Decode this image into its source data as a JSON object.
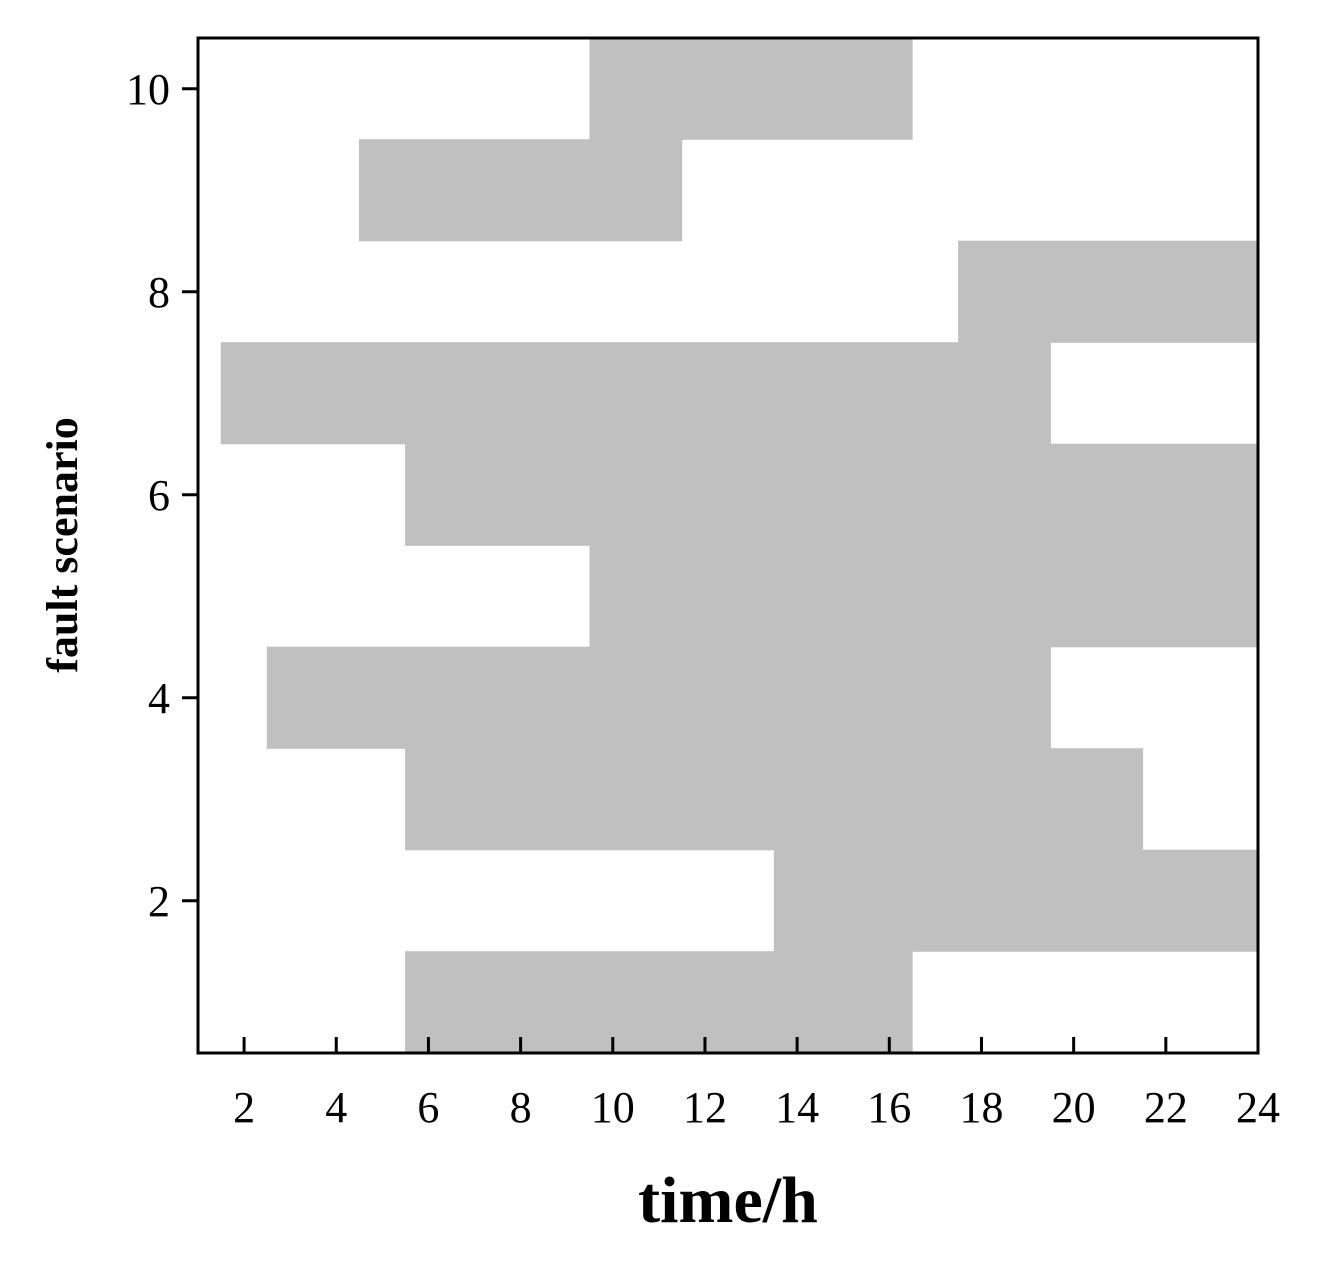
{
  "chart_data": {
    "type": "heatmap",
    "title": "",
    "xlabel": "time/h",
    "ylabel": "fault scenario",
    "xlim": [
      1,
      24
    ],
    "ylim": [
      0.5,
      10.5
    ],
    "x_ticks": [
      2,
      4,
      6,
      8,
      10,
      12,
      14,
      16,
      18,
      20,
      22,
      24
    ],
    "y_ticks": [
      2,
      4,
      6,
      8,
      10
    ],
    "grid": false,
    "legend": "none",
    "fill_color": "#c0c0c0",
    "background_color": "#ffffff",
    "rows": [
      {
        "scenario": 1,
        "active_hours": [
          [
            6,
            16
          ]
        ]
      },
      {
        "scenario": 2,
        "active_hours": [
          [
            14,
            24
          ]
        ]
      },
      {
        "scenario": 3,
        "active_hours": [
          [
            6,
            21
          ]
        ]
      },
      {
        "scenario": 4,
        "active_hours": [
          [
            3,
            19
          ]
        ]
      },
      {
        "scenario": 5,
        "active_hours": [
          [
            10,
            24
          ]
        ]
      },
      {
        "scenario": 6,
        "active_hours": [
          [
            6,
            24
          ]
        ]
      },
      {
        "scenario": 7,
        "active_hours": [
          [
            2,
            19
          ]
        ]
      },
      {
        "scenario": 8,
        "active_hours": [
          [
            18,
            24
          ]
        ]
      },
      {
        "scenario": 9,
        "active_hours": [
          [
            5,
            11
          ]
        ]
      },
      {
        "scenario": 10,
        "active_hours": [
          [
            10,
            16
          ]
        ]
      }
    ]
  }
}
